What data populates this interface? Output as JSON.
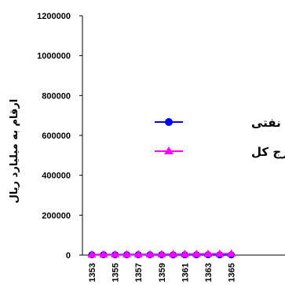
{
  "chart_data": {
    "type": "line",
    "title": "",
    "ylabel": "ارقام به میلیارد ریال",
    "xlabel": "",
    "ylim": [
      0,
      1200000
    ],
    "yticks": [
      "1200000",
      "1000000",
      "800000",
      "600000",
      "400000",
      "200000",
      "0"
    ],
    "ytick_values": [
      1200000,
      1000000,
      800000,
      600000,
      400000,
      200000,
      0
    ],
    "x": [
      1353,
      1354,
      1355,
      1356,
      1357,
      1358,
      1359,
      1360,
      1361,
      1362,
      1363,
      1364,
      1365
    ],
    "xtick_labels": [
      "1353",
      "1355",
      "1357",
      "1359",
      "1361",
      "1363",
      "1365"
    ],
    "grid": false,
    "legend_position": "right",
    "series": [
      {
        "name": "درآمدهای نفتی",
        "color": "#0000ff",
        "marker": "circle",
        "values": [
          1500,
          1600,
          1700,
          1800,
          1900,
          1500,
          1600,
          1200,
          1300,
          1400,
          1500,
          1200,
          1000
        ]
      },
      {
        "name": "مخارج کل",
        "color": "#ff00ff",
        "marker": "triangle",
        "values": [
          2500,
          3000,
          3200,
          3500,
          3800,
          4000,
          4200,
          4500,
          5000,
          5500,
          6000,
          6500,
          7000
        ]
      }
    ]
  }
}
